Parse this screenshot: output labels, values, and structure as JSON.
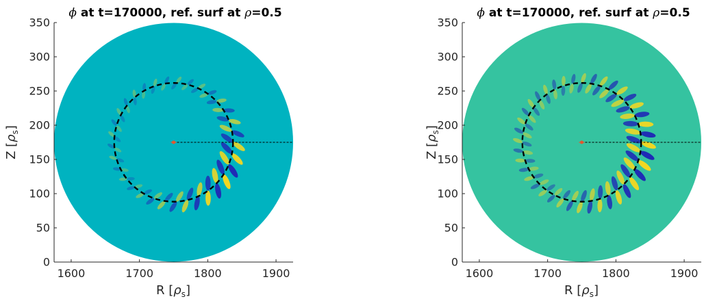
{
  "chart_data": [
    {
      "type": "heatmap",
      "title_symbol": "ϕ",
      "title_text": " at t=170000, ref. surf at ",
      "title_rho": "ρ",
      "title_value": "=0.5",
      "xlabel_main": "R [",
      "xlabel_sym": "ρ",
      "xlabel_sub": "s",
      "xlabel_close": "]",
      "ylabel_main": "Z [",
      "ylabel_sym": "ρ",
      "ylabel_sub": "s",
      "ylabel_close": "]",
      "xlim": [
        1575,
        1925
      ],
      "ylim": [
        0,
        350
      ],
      "xticks": [
        1600,
        1700,
        1800,
        1900
      ],
      "yticks": [
        0,
        50,
        100,
        150,
        200,
        250,
        300,
        350
      ],
      "domain_center": [
        1750,
        175
      ],
      "domain_radius": 175,
      "ref_surface_radius": 87,
      "axis_point": [
        1750,
        175
      ],
      "mode_count": 33,
      "background_color": "#00b3c0",
      "colors": {
        "positive": "#f2d722",
        "negative": "#1f2bb5",
        "center_marker": "#e4572e"
      }
    },
    {
      "type": "heatmap",
      "title_symbol": "ϕ",
      "title_text": " at t=170000, ref. surf at ",
      "title_rho": "ρ",
      "title_value": "=0.5",
      "xlabel_main": "R [",
      "xlabel_sym": "ρ",
      "xlabel_sub": "s",
      "xlabel_close": "]",
      "ylabel_main": "Z [",
      "ylabel_sym": "ρ",
      "ylabel_sub": "s",
      "ylabel_close": "]",
      "xlim": [
        1575,
        1925
      ],
      "ylim": [
        0,
        350
      ],
      "xticks": [
        1600,
        1700,
        1800,
        1900
      ],
      "yticks": [
        0,
        50,
        100,
        150,
        200,
        250,
        300,
        350
      ],
      "domain_center": [
        1750,
        175
      ],
      "domain_radius": 175,
      "ref_surface_radius": 87,
      "axis_point": [
        1750,
        175
      ],
      "mode_count": 40,
      "background_color": "#35c3a0",
      "colors": {
        "positive": "#f2d722",
        "negative": "#1f2bb5",
        "center_marker": "#e4572e"
      }
    }
  ]
}
